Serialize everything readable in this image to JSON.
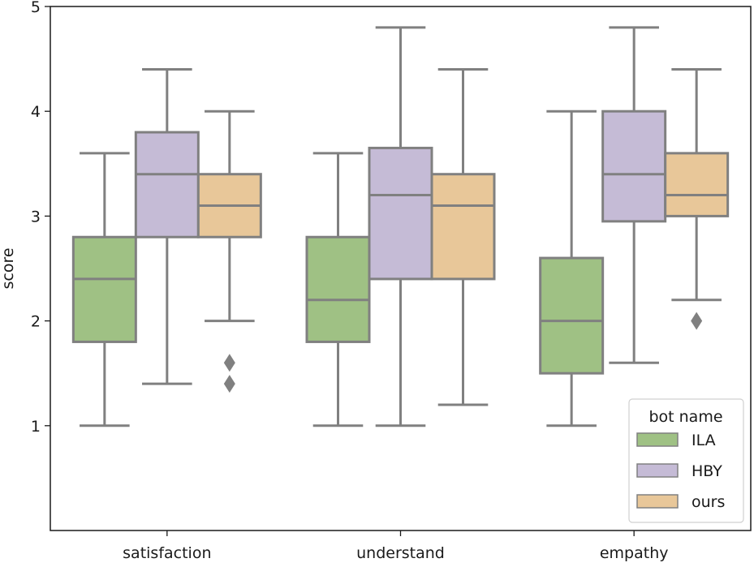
{
  "chart_data": {
    "type": "box",
    "ylabel": "score",
    "xlabel": "",
    "ylim": [
      0,
      5
    ],
    "yticks": [
      1,
      2,
      3,
      4,
      5
    ],
    "categories": [
      "satisfaction",
      "understand",
      "empathy"
    ],
    "legend": {
      "title": "bot name",
      "placement": "bottom-right"
    },
    "series": [
      {
        "name": "ILA",
        "color": "#9fc184",
        "boxes": [
          {
            "min": 1.0,
            "q1": 1.8,
            "median": 2.4,
            "q3": 2.8,
            "max": 3.6,
            "outliers": []
          },
          {
            "min": 1.0,
            "q1": 1.8,
            "median": 2.2,
            "q3": 2.8,
            "max": 3.6,
            "outliers": []
          },
          {
            "min": 1.0,
            "q1": 1.5,
            "median": 2.0,
            "q3": 2.6,
            "max": 4.0,
            "outliers": []
          }
        ]
      },
      {
        "name": "HBY",
        "color": "#c5bbd6",
        "boxes": [
          {
            "min": 1.4,
            "q1": 2.8,
            "median": 3.4,
            "q3": 3.8,
            "max": 4.4,
            "outliers": []
          },
          {
            "min": 1.0,
            "q1": 2.4,
            "median": 3.2,
            "q3": 3.65,
            "max": 4.8,
            "outliers": []
          },
          {
            "min": 1.6,
            "q1": 2.95,
            "median": 3.4,
            "q3": 4.0,
            "max": 4.8,
            "outliers": []
          }
        ]
      },
      {
        "name": "ours",
        "color": "#e8c799",
        "boxes": [
          {
            "min": 2.0,
            "q1": 2.8,
            "median": 3.1,
            "q3": 3.4,
            "max": 4.0,
            "outliers": [
              1.6,
              1.4
            ]
          },
          {
            "min": 1.2,
            "q1": 2.4,
            "median": 3.1,
            "q3": 3.4,
            "max": 4.4,
            "outliers": []
          },
          {
            "min": 2.2,
            "q1": 3.0,
            "median": 3.2,
            "q3": 3.6,
            "max": 4.4,
            "outliers": [
              2.0
            ]
          }
        ]
      }
    ],
    "line_color": "#808080"
  }
}
